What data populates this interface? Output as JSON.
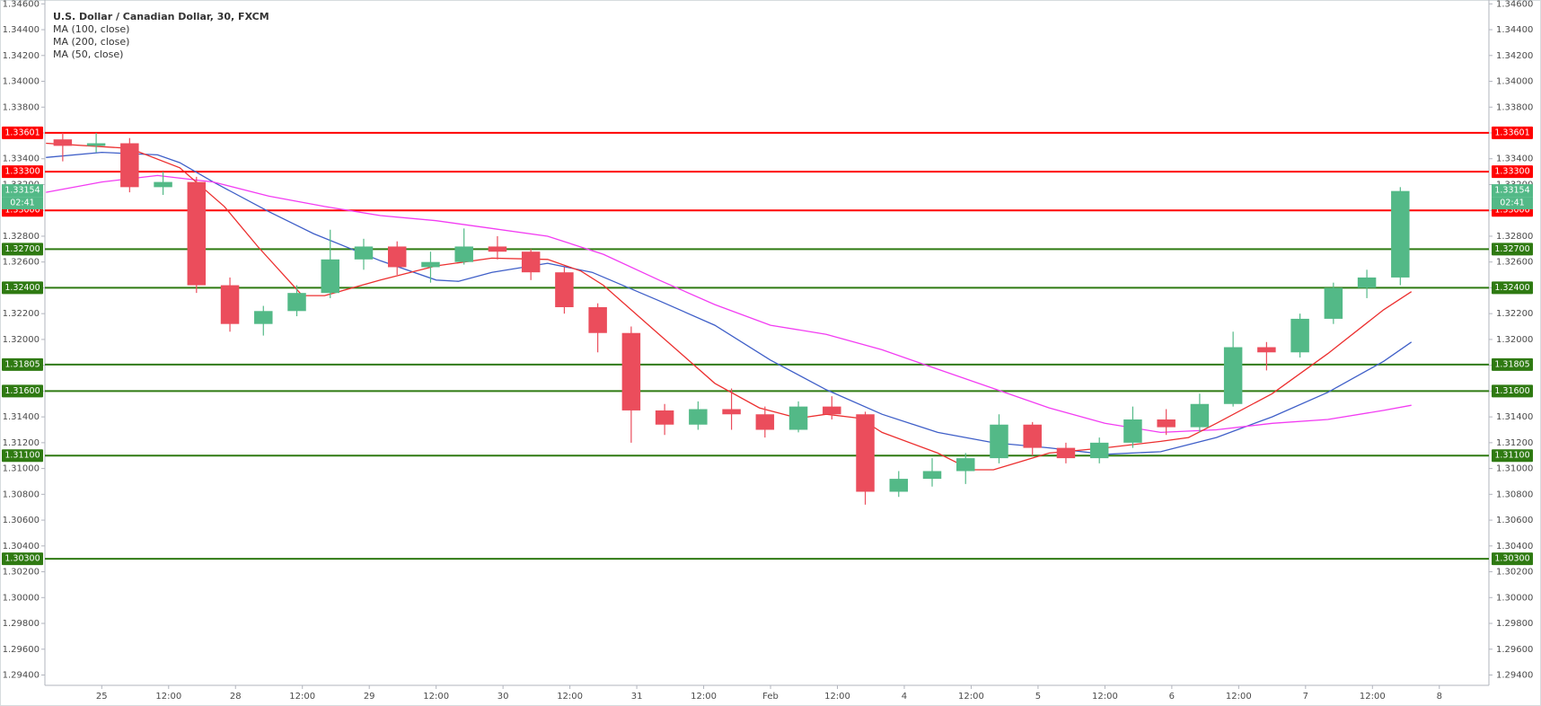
{
  "chart_data": {
    "type": "candlestick",
    "title": "U.S. Dollar / Canadian Dollar, 30, FXCM",
    "x": [
      -7,
      -1,
      5,
      11,
      17,
      23,
      29,
      35,
      41,
      47,
      53,
      59,
      65,
      71,
      77,
      83,
      89,
      95,
      101,
      107,
      113,
      119,
      125,
      131,
      137,
      143,
      149,
      155,
      161,
      167,
      173,
      179,
      185,
      191,
      197,
      203,
      209,
      215,
      221,
      227,
      233
    ],
    "open": [
      1.3355,
      1.335,
      1.3352,
      1.3318,
      1.3322,
      1.3242,
      1.3212,
      1.3222,
      1.3236,
      1.3262,
      1.3272,
      1.3256,
      1.326,
      1.3272,
      1.3268,
      1.3252,
      1.3225,
      1.3205,
      1.3145,
      1.3134,
      1.3146,
      1.3142,
      1.313,
      1.3148,
      1.3142,
      1.3082,
      1.3092,
      1.3098,
      1.3108,
      1.3134,
      1.3116,
      1.3108,
      1.312,
      1.3138,
      1.3132,
      1.315,
      1.3194,
      1.319,
      1.3216,
      1.324,
      1.3248
    ],
    "high": [
      1.336,
      1.336,
      1.3356,
      1.333,
      1.3326,
      1.3248,
      1.3226,
      1.3242,
      1.3285,
      1.3278,
      1.3276,
      1.3268,
      1.3286,
      1.328,
      1.327,
      1.3256,
      1.3228,
      1.321,
      1.315,
      1.3152,
      1.3162,
      1.3148,
      1.3152,
      1.3156,
      1.3144,
      1.3098,
      1.3108,
      1.3112,
      1.3142,
      1.3136,
      1.312,
      1.3124,
      1.3148,
      1.3146,
      1.3158,
      1.3206,
      1.3198,
      1.322,
      1.3244,
      1.3254,
      1.3318
    ],
    "low": [
      1.3338,
      1.3345,
      1.3314,
      1.3312,
      1.3236,
      1.3206,
      1.3203,
      1.3218,
      1.3232,
      1.3254,
      1.325,
      1.3244,
      1.3258,
      1.3262,
      1.3246,
      1.322,
      1.319,
      1.312,
      1.3126,
      1.313,
      1.313,
      1.3124,
      1.3128,
      1.3138,
      1.3072,
      1.3078,
      1.3086,
      1.3088,
      1.3104,
      1.311,
      1.3104,
      1.3104,
      1.3116,
      1.3126,
      1.3128,
      1.3148,
      1.3176,
      1.3186,
      1.3212,
      1.3232,
      1.3242
    ],
    "close": [
      1.335,
      1.3352,
      1.3318,
      1.3322,
      1.3242,
      1.3212,
      1.3222,
      1.3236,
      1.3262,
      1.3272,
      1.3256,
      1.326,
      1.3272,
      1.3268,
      1.3252,
      1.3225,
      1.3205,
      1.3145,
      1.3134,
      1.3146,
      1.3142,
      1.313,
      1.3148,
      1.3142,
      1.3082,
      1.3092,
      1.3098,
      1.3108,
      1.3134,
      1.3116,
      1.3108,
      1.312,
      1.3138,
      1.3132,
      1.315,
      1.3194,
      1.319,
      1.3216,
      1.324,
      1.3248,
      1.3315
    ],
    "up_color": "#53b987",
    "down_color": "#eb4d5c",
    "series": [
      {
        "name": "MA (100, close)",
        "color": "#3f5fc8",
        "x": [
          -10,
          0,
          10,
          14,
          20,
          30,
          38,
          50,
          60,
          64,
          70,
          80,
          88,
          100,
          110,
          120,
          130,
          140,
          150,
          160,
          170,
          180,
          190,
          200,
          210,
          220,
          230,
          235
        ],
        "values": [
          1.3341,
          1.3345,
          1.3343,
          1.3337,
          1.3322,
          1.3299,
          1.3282,
          1.3261,
          1.3246,
          1.3245,
          1.3252,
          1.3259,
          1.3252,
          1.323,
          1.3211,
          1.3184,
          1.3161,
          1.3142,
          1.3128,
          1.312,
          1.3116,
          1.3111,
          1.3113,
          1.3124,
          1.314,
          1.3159,
          1.3183,
          1.3198
        ]
      },
      {
        "name": "MA (200, close)",
        "color": "#f23cf2",
        "x": [
          -10,
          0,
          10,
          20,
          30,
          40,
          50,
          60,
          70,
          80,
          90,
          100,
          110,
          120,
          130,
          140,
          150,
          160,
          170,
          180,
          190,
          200,
          210,
          220,
          230,
          235
        ],
        "values": [
          1.3314,
          1.3322,
          1.3327,
          1.3322,
          1.3311,
          1.3303,
          1.3296,
          1.3292,
          1.3286,
          1.328,
          1.3266,
          1.3246,
          1.3227,
          1.3211,
          1.3204,
          1.3192,
          1.3177,
          1.3162,
          1.3147,
          1.3135,
          1.3128,
          1.313,
          1.3135,
          1.3138,
          1.3145,
          1.3149
        ]
      },
      {
        "name": "MA (50, close)",
        "color": "#ec2f2f",
        "x": [
          -10,
          5,
          14,
          22,
          28,
          36,
          40,
          50,
          60,
          70,
          80,
          86,
          90,
          100,
          110,
          118,
          125,
          130,
          136,
          140,
          150,
          156,
          160,
          170,
          180,
          190,
          195,
          200,
          210,
          220,
          230,
          235
        ],
        "values": [
          1.3352,
          1.3348,
          1.3333,
          1.3303,
          1.3272,
          1.3234,
          1.3234,
          1.3246,
          1.3257,
          1.3263,
          1.3262,
          1.3253,
          1.3242,
          1.3204,
          1.3166,
          1.3147,
          1.3139,
          1.3142,
          1.3139,
          1.3128,
          1.3112,
          1.3099,
          1.3099,
          1.3112,
          1.3116,
          1.3121,
          1.3124,
          1.3135,
          1.3158,
          1.3189,
          1.3223,
          1.3237
        ]
      }
    ],
    "levels": [
      {
        "value": 1.33601,
        "label": "1.33601",
        "color": "#ff0000"
      },
      {
        "value": 1.333,
        "label": "1.33300",
        "color": "#ff0000"
      },
      {
        "value": 1.33,
        "label": "1.33000",
        "color": "#ff0000"
      },
      {
        "value": 1.327,
        "label": "1.32700",
        "color": "#2f7a12"
      },
      {
        "value": 1.324,
        "label": "1.32400",
        "color": "#2f7a12"
      },
      {
        "value": 1.31805,
        "label": "1.31805",
        "color": "#2f7a12"
      },
      {
        "value": 1.316,
        "label": "1.31600",
        "color": "#2f7a12"
      },
      {
        "value": 1.311,
        "label": "1.31100",
        "color": "#2f7a12"
      },
      {
        "value": 1.303,
        "label": "1.30300",
        "color": "#2f7a12"
      }
    ],
    "last_price": 1.33154,
    "countdown": "02:41",
    "last_price_color": "#53b987",
    "xlim": [
      -10.2,
      248.9
    ],
    "xticks": [
      {
        "value": 0,
        "label": "25"
      },
      {
        "value": 12,
        "label": "12:00"
      },
      {
        "value": 24,
        "label": "28"
      },
      {
        "value": 36,
        "label": "12:00"
      },
      {
        "value": 48,
        "label": "29"
      },
      {
        "value": 60,
        "label": "12:00"
      },
      {
        "value": 72,
        "label": "30"
      },
      {
        "value": 84,
        "label": "12:00"
      },
      {
        "value": 96,
        "label": "31"
      },
      {
        "value": 108,
        "label": "12:00"
      },
      {
        "value": 120,
        "label": "Feb"
      },
      {
        "value": 132,
        "label": "12:00"
      },
      {
        "value": 144,
        "label": "4"
      },
      {
        "value": 156,
        "label": "12:00"
      },
      {
        "value": 168,
        "label": "5"
      },
      {
        "value": 180,
        "label": "12:00"
      },
      {
        "value": 192,
        "label": "6"
      },
      {
        "value": 204,
        "label": "12:00"
      },
      {
        "value": 216,
        "label": "7"
      },
      {
        "value": 228,
        "label": "12:00"
      },
      {
        "value": 240,
        "label": "8"
      }
    ],
    "ylim": [
      1.2932,
      1.3463
    ],
    "yticks": [
      {
        "value": 1.294,
        "label": "1.29400"
      },
      {
        "value": 1.296,
        "label": "1.29600"
      },
      {
        "value": 1.298,
        "label": "1.29800"
      },
      {
        "value": 1.3,
        "label": "1.30000"
      },
      {
        "value": 1.302,
        "label": "1.30200"
      },
      {
        "value": 1.304,
        "label": "1.30400"
      },
      {
        "value": 1.306,
        "label": "1.30600"
      },
      {
        "value": 1.308,
        "label": "1.30800"
      },
      {
        "value": 1.31,
        "label": "1.31000"
      },
      {
        "value": 1.312,
        "label": "1.31200"
      },
      {
        "value": 1.314,
        "label": "1.31400"
      },
      {
        "value": 1.316,
        "label": "1.31600"
      },
      {
        "value": 1.318,
        "label": "1.31800"
      },
      {
        "value": 1.32,
        "label": "1.32000"
      },
      {
        "value": 1.322,
        "label": "1.32200"
      },
      {
        "value": 1.324,
        "label": "1.32400"
      },
      {
        "value": 1.326,
        "label": "1.32600"
      },
      {
        "value": 1.328,
        "label": "1.32800"
      },
      {
        "value": 1.33,
        "label": "1.33000"
      },
      {
        "value": 1.332,
        "label": "1.33200"
      },
      {
        "value": 1.334,
        "label": "1.33400"
      },
      {
        "value": 1.336,
        "label": "1.33600"
      },
      {
        "value": 1.338,
        "label": "1.33800"
      },
      {
        "value": 1.34,
        "label": "1.34000"
      },
      {
        "value": 1.342,
        "label": "1.34200"
      },
      {
        "value": 1.344,
        "label": "1.34400"
      },
      {
        "value": 1.346,
        "label": "1.34600"
      }
    ],
    "grid": false
  }
}
